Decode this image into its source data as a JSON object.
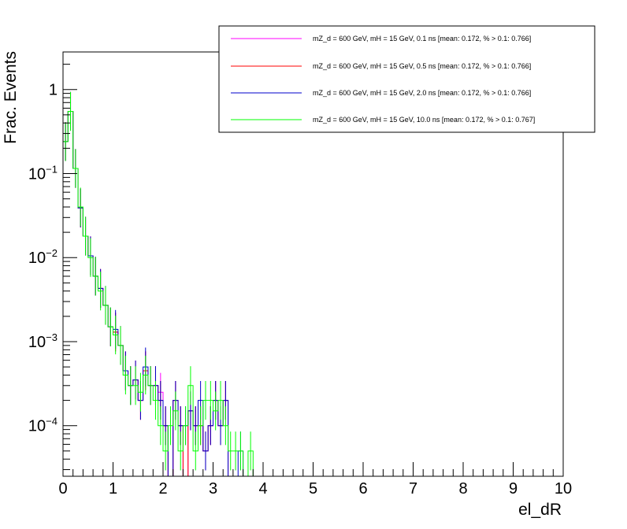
{
  "chart_data": {
    "type": "line",
    "title": "",
    "xlabel": "el_dR",
    "ylabel": "Frac. Events",
    "xlim": [
      0,
      10
    ],
    "ylim": [
      2.5e-05,
      2.8
    ],
    "yscale": "log",
    "grid": false,
    "legend_position": "top-right",
    "x_ticks": [
      "0",
      "1",
      "2",
      "3",
      "4",
      "5",
      "6",
      "7",
      "8",
      "9",
      "10"
    ],
    "y_ticks": [
      {
        "value": 0.0001,
        "base": "10",
        "exp": "−4"
      },
      {
        "value": 0.001,
        "base": "10",
        "exp": "−3"
      },
      {
        "value": 0.01,
        "base": "10",
        "exp": "−2"
      },
      {
        "value": 0.1,
        "base": "10",
        "exp": "−1"
      },
      {
        "value": 1,
        "base": "1",
        "exp": ""
      }
    ],
    "bin_width": 0.1,
    "series": [
      {
        "name": "mZ_d = 600 GeV, mH = 15 GeV, 0.1 ns [mean: 0.172, % > 0.1: 0.766]",
        "color": "#ff00ff",
        "bin_low_edges": [
          0.0,
          0.1,
          0.2,
          0.3,
          0.4,
          0.5,
          0.6,
          0.7,
          0.8,
          0.9,
          1.0,
          1.1,
          1.2,
          1.3,
          1.4,
          1.5,
          1.6,
          1.7,
          1.8,
          1.9,
          2.0,
          2.1,
          2.2,
          2.3,
          2.4,
          2.5,
          2.6,
          2.7,
          2.8,
          2.9,
          3.0,
          3.1,
          3.2,
          3.3,
          3.4,
          3.5,
          3.6,
          3.7,
          3.8,
          3.9
        ],
        "values": [
          0.24,
          0.55,
          0.115,
          0.039,
          0.018,
          0.0105,
          0.006,
          0.0043,
          0.0027,
          0.0015,
          0.0013,
          0.0009,
          0.00045,
          0.0003,
          0.00035,
          0.0002,
          0.00045,
          0.0003,
          0.0003,
          0.00025,
          0.0001,
          0,
          0.0002,
          0.0001,
          0,
          0.00015,
          0.0001,
          0.0001,
          5e-05,
          0.0001,
          0.0002,
          0.0001,
          0.0002,
          0,
          0,
          0,
          0,
          0,
          0,
          0
        ]
      },
      {
        "name": "mZ_d = 600 GeV, mH = 15 GeV, 0.5 ns [mean: 0.172, % > 0.1: 0.766]",
        "color": "#ff0000",
        "bin_low_edges": [
          0.0,
          0.1,
          0.2,
          0.3,
          0.4,
          0.5,
          0.6,
          0.7,
          0.8,
          0.9,
          1.0,
          1.1,
          1.2,
          1.3,
          1.4,
          1.5,
          1.6,
          1.7,
          1.8,
          1.9,
          2.0,
          2.1,
          2.2,
          2.3,
          2.4,
          2.5,
          2.6,
          2.7,
          2.8,
          2.9,
          3.0,
          3.1,
          3.2,
          3.3,
          3.4,
          3.5,
          3.6,
          3.7,
          3.8,
          3.9
        ],
        "values": [
          0.24,
          0.55,
          0.115,
          0.039,
          0.018,
          0.0105,
          0.006,
          0.0043,
          0.0027,
          0.0015,
          0.0013,
          0.0009,
          0.00045,
          0.0003,
          0.00035,
          0.0002,
          0.00045,
          0.0003,
          0.0003,
          0.0002,
          0.0001,
          0,
          0.0002,
          0.0001,
          0,
          0.00015,
          0.0001,
          0.0001,
          5e-05,
          0.0001,
          0.0002,
          0.0001,
          0.0002,
          0,
          0,
          0,
          0,
          0,
          0,
          0
        ]
      },
      {
        "name": "mZ_d = 600 GeV, mH = 15 GeV, 2.0 ns [mean: 0.172, % > 0.1: 0.766]",
        "color": "#0000cc",
        "bin_low_edges": [
          0.0,
          0.1,
          0.2,
          0.3,
          0.4,
          0.5,
          0.6,
          0.7,
          0.8,
          0.9,
          1.0,
          1.1,
          1.2,
          1.3,
          1.4,
          1.5,
          1.6,
          1.7,
          1.8,
          1.9,
          2.0,
          2.1,
          2.2,
          2.3,
          2.4,
          2.5,
          2.6,
          2.7,
          2.8,
          2.9,
          3.0,
          3.1,
          3.2,
          3.3,
          3.4,
          3.5,
          3.6,
          3.7,
          3.8,
          3.9
        ],
        "values": [
          0.24,
          0.55,
          0.115,
          0.039,
          0.018,
          0.0105,
          0.006,
          0.0043,
          0.0027,
          0.0015,
          0.0014,
          0.0009,
          0.00045,
          0.0003,
          0.00035,
          0.0002,
          0.0005,
          0.0003,
          0.0003,
          0.0002,
          0.0001,
          0,
          0.0002,
          0.0001,
          0.0001,
          0.00015,
          0.0001,
          0.0002,
          5e-05,
          0.0001,
          0.0002,
          0.0001,
          0.0002,
          0,
          0,
          5e-05,
          0,
          0,
          0,
          0
        ]
      },
      {
        "name": "mZ_d = 600 GeV, mH = 15 GeV, 10.0 ns [mean: 0.172, % > 0.1: 0.767]",
        "color": "#00ff00",
        "bin_low_edges": [
          0.0,
          0.1,
          0.2,
          0.3,
          0.4,
          0.5,
          0.6,
          0.7,
          0.8,
          0.9,
          1.0,
          1.1,
          1.2,
          1.3,
          1.4,
          1.5,
          1.6,
          1.7,
          1.8,
          1.9,
          2.0,
          2.1,
          2.2,
          2.3,
          2.4,
          2.5,
          2.6,
          2.7,
          2.8,
          2.9,
          3.0,
          3.1,
          3.2,
          3.3,
          3.4,
          3.5,
          3.6,
          3.7,
          3.8,
          3.9
        ],
        "values": [
          0.24,
          0.55,
          0.115,
          0.04,
          0.018,
          0.01,
          0.006,
          0.004,
          0.0027,
          0.0015,
          0.0012,
          0.0009,
          0.0004,
          0.0003,
          0.0003,
          0.00025,
          0.0004,
          0.0003,
          0.0002,
          0.0001,
          5e-05,
          0.0001,
          0.00015,
          5e-05,
          0.0001,
          0.0003,
          5e-05,
          0.0001,
          0.0002,
          0.0002,
          0.00015,
          0.0002,
          0.0001,
          5e-05,
          5e-05,
          5e-05,
          0,
          5e-05,
          0,
          0
        ]
      }
    ]
  }
}
